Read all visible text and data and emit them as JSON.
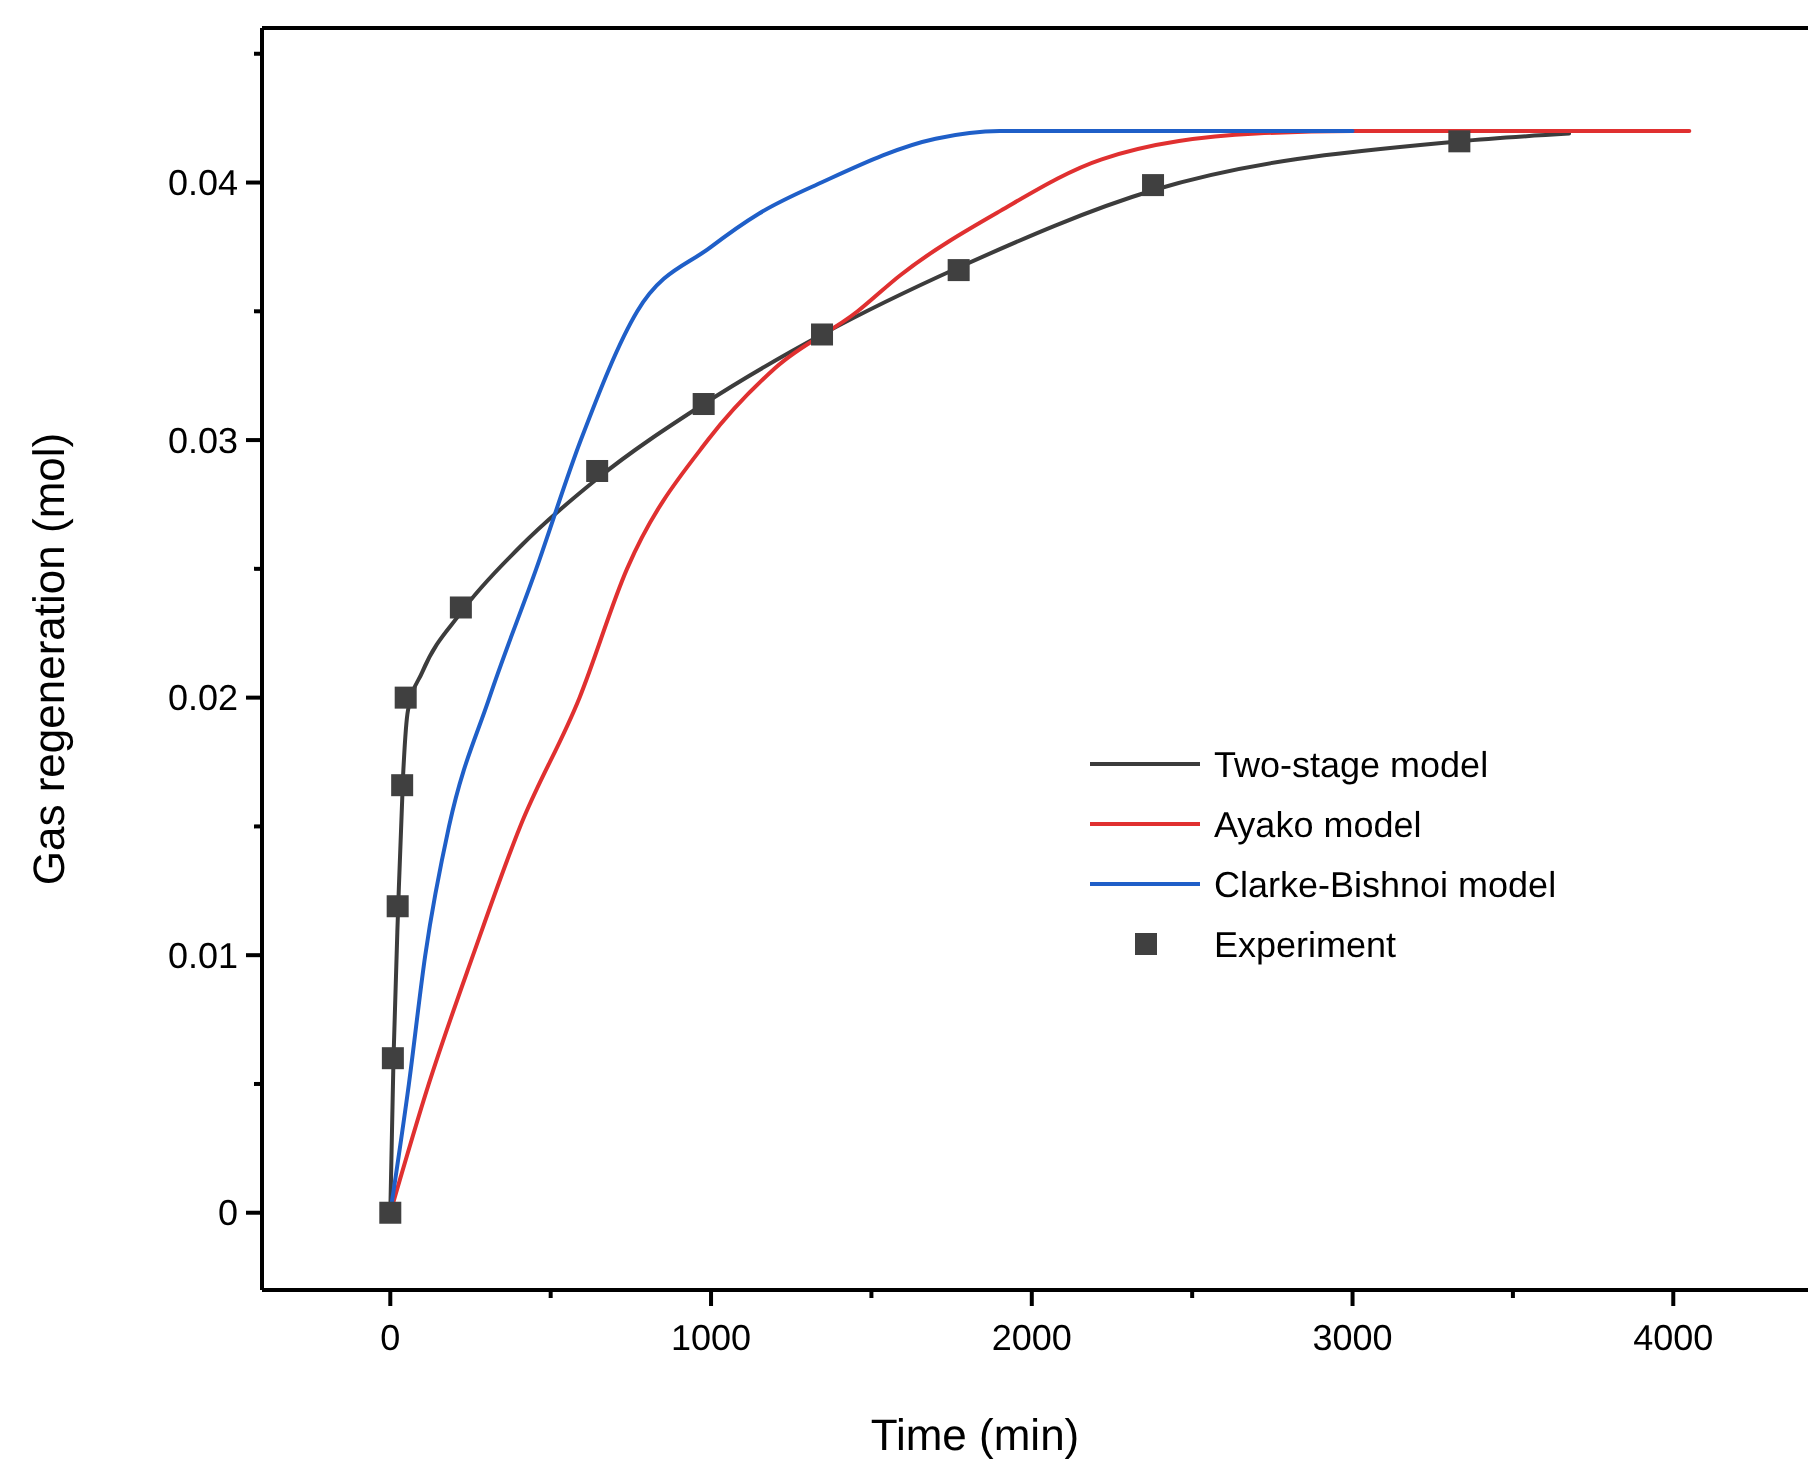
{
  "chart_data": {
    "type": "line",
    "xlabel": "Time (min)",
    "ylabel": "Gas regeneration (mol)",
    "xlim": [
      -400,
      4420
    ],
    "ylim": [
      -0.003,
      0.046
    ],
    "xticks": [
      0,
      {
        "value": 500,
        "label": null
      },
      1000,
      {
        "value": 1500,
        "label": null
      },
      2000,
      {
        "value": 2500,
        "label": null
      },
      3000,
      {
        "value": 3500,
        "label": null
      },
      4000
    ],
    "yticks": [
      0,
      {
        "value": 0.005,
        "label": null
      },
      0.01,
      {
        "value": 0.015,
        "label": null
      },
      0.02,
      {
        "value": 0.025,
        "label": null
      },
      0.03,
      {
        "value": 0.035,
        "label": null
      },
      0.04,
      {
        "value": 0.045,
        "label": null
      }
    ],
    "grid": false,
    "legend": "right",
    "line_style": "solid",
    "series": [
      {
        "name": "Two-stage model",
        "color": "#3c3c3c",
        "marker": "none",
        "x": [
          0,
          10,
          25,
          40,
          55,
          100,
          220,
          400,
          645,
          977,
          1346,
          1772,
          2378,
          3333,
          3675
        ],
        "values": [
          0,
          0.006,
          0.012,
          0.017,
          0.0195,
          0.021,
          0.0233,
          0.0258,
          0.0285,
          0.0314,
          0.0341,
          0.0367,
          0.0397,
          0.0416,
          0.0419
        ]
      },
      {
        "name": "Ayako model",
        "color": "#e03030",
        "marker": "none",
        "x": [
          0,
          120,
          258,
          405,
          590,
          738,
          990,
          1200,
          1457,
          1590,
          1902,
          2218,
          2700,
          3000,
          4050
        ],
        "values": [
          0,
          0.005,
          0.01,
          0.015,
          0.02,
          0.025,
          0.03,
          0.0328,
          0.035,
          0.0364,
          0.0389,
          0.0409,
          0.0419,
          0.042,
          0.042
        ]
      },
      {
        "name": "Clarke-Bishnoi model",
        "color": "#1f5fc8",
        "marker": "none",
        "x": [
          0,
          58,
          109,
          183,
          309,
          455,
          594,
          770,
          1000,
          1150,
          1344,
          1700,
          1900,
          3000
        ],
        "values": [
          0,
          0.005,
          0.01,
          0.015,
          0.02,
          0.025,
          0.03,
          0.035,
          0.0375,
          0.0388,
          0.04,
          0.0417,
          0.042,
          0.042
        ]
      },
      {
        "name": "Experiment",
        "type": "scatter",
        "color": "#404040",
        "marker": "square",
        "x": [
          0,
          8,
          23,
          37,
          48,
          220,
          645,
          977,
          1346,
          1772,
          2378,
          3333
        ],
        "values": [
          0,
          0.006,
          0.0119,
          0.0166,
          0.02,
          0.0235,
          0.0288,
          0.0314,
          0.0341,
          0.0366,
          0.0399,
          0.0416
        ]
      }
    ]
  }
}
